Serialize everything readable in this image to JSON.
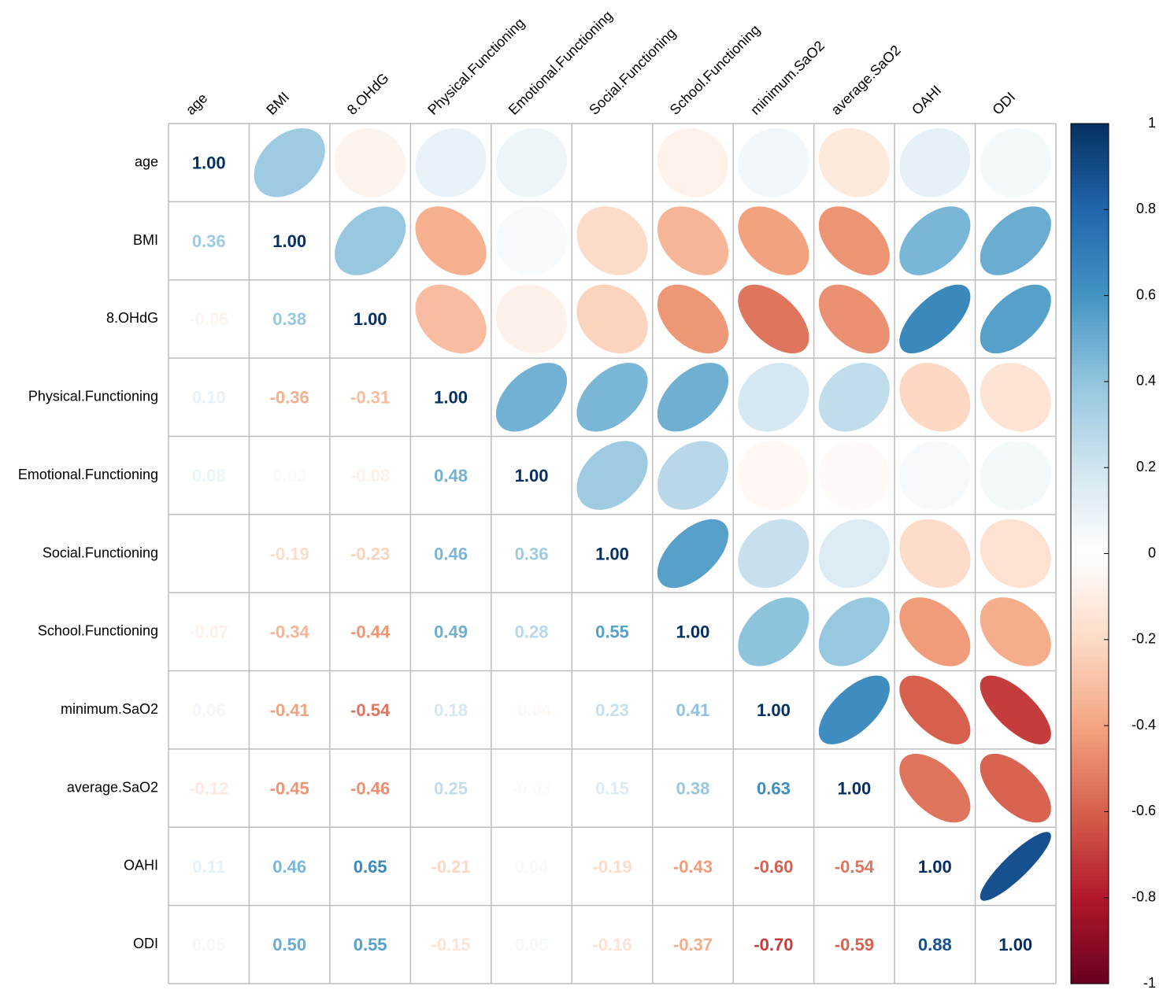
{
  "chart_data": {
    "type": "heatmap",
    "title": "",
    "variables": [
      "age",
      "BMI",
      "8.OHdG",
      "Physical.Functioning",
      "Emotional.Functioning",
      "Social.Functioning",
      "School.Functioning",
      "minimum.SaO2",
      "average.SaO2",
      "OAHI",
      "ODI"
    ],
    "lower_triangle": [
      [
        1.0
      ],
      [
        0.36,
        1.0
      ],
      [
        -0.06,
        0.38,
        1.0
      ],
      [
        0.1,
        -0.36,
        -0.31,
        1.0
      ],
      [
        0.08,
        0.03,
        -0.08,
        0.48,
        1.0
      ],
      [
        0.0,
        -0.19,
        -0.23,
        0.46,
        0.36,
        1.0
      ],
      [
        -0.07,
        -0.34,
        -0.44,
        0.49,
        0.28,
        0.55,
        1.0
      ],
      [
        0.06,
        -0.41,
        -0.54,
        0.18,
        -0.04,
        0.23,
        0.41,
        1.0
      ],
      [
        -0.12,
        -0.45,
        -0.46,
        0.25,
        -0.03,
        0.15,
        0.38,
        0.63,
        1.0
      ],
      [
        0.11,
        0.46,
        0.65,
        -0.21,
        0.04,
        -0.19,
        -0.43,
        -0.6,
        -0.54,
        1.0
      ],
      [
        0.05,
        0.5,
        0.55,
        -0.15,
        0.05,
        -0.16,
        -0.37,
        -0.7,
        -0.59,
        0.88,
        1.0
      ]
    ],
    "colorbar": {
      "range": [
        -1,
        1
      ],
      "ticks": [
        "1",
        "0.8",
        "0.6",
        "0.4",
        "0.2",
        "0",
        "-0.2",
        "-0.4",
        "-0.6",
        "-0.8",
        "-1"
      ],
      "tick_values": [
        1,
        0.8,
        0.6,
        0.4,
        0.2,
        0,
        -0.2,
        -0.4,
        -0.6,
        -0.8,
        -1
      ],
      "placement": "right"
    },
    "palette": [
      "#67001F",
      "#B2182B",
      "#D6604D",
      "#F4A582",
      "#FDDBC7",
      "#FFFFFF",
      "#D1E5F0",
      "#92C5DE",
      "#4393C3",
      "#2166AC",
      "#053061"
    ]
  }
}
